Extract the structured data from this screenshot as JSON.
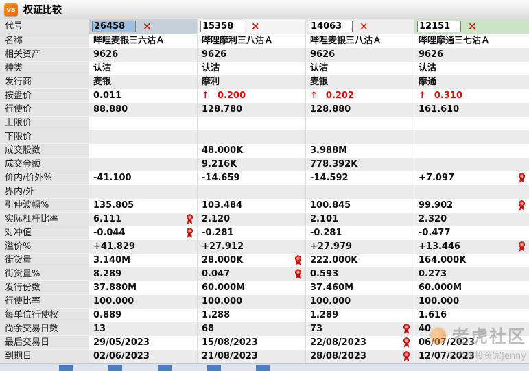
{
  "titlebar": {
    "logo_text": "vs",
    "title": "权证比较"
  },
  "table": {
    "header_label": "代号",
    "close_glyph": "×",
    "up_glyph": "↑",
    "award_icon": "award-ribbon",
    "row_labels": [
      "名称",
      "相关资产",
      "种类",
      "发行商",
      "按盘价",
      "行使价",
      "上限价",
      "下限价",
      "成交股数",
      "成交金额",
      "价内/价外%",
      "界内/外",
      "引伸波幅%",
      "实际杠杆比率",
      "对冲值",
      "溢价%",
      "街货量",
      "街货量%",
      "发行份数",
      "行使比率",
      "每单位行使权",
      "尚余交易日数",
      "最后交易日",
      "到期日"
    ],
    "accent_colors": {
      "value_red": "#e00000",
      "close_red": "#dd1111"
    },
    "columns": [
      {
        "code": "26458",
        "code_selected": true,
        "header_bg": "#c4d0da",
        "cells": [
          {
            "text": "哔哩麦银三六沽Ａ"
          },
          {
            "text": "9626"
          },
          {
            "text": "认沽"
          },
          {
            "text": "麦银"
          },
          {
            "text": "0.011"
          },
          {
            "text": "88.880"
          },
          {},
          {},
          {},
          {},
          {
            "text": "-41.100"
          },
          {},
          {
            "text": "135.805"
          },
          {
            "text": "6.111",
            "medal": true
          },
          {
            "text": "-0.044",
            "medal": true
          },
          {
            "text": "+41.829"
          },
          {
            "text": "3.140M"
          },
          {
            "text": "8.289"
          },
          {
            "text": "37.880M"
          },
          {
            "text": "100.000"
          },
          {
            "text": "0.889"
          },
          {
            "text": "13"
          },
          {
            "text": "29/05/2023"
          },
          {
            "text": "02/06/2023"
          }
        ]
      },
      {
        "code": "15358",
        "code_selected": false,
        "header_bg": "#f4f4f4",
        "cells": [
          {
            "text": "哔哩摩利三八沽Ａ"
          },
          {
            "text": "9626"
          },
          {
            "text": "认沽"
          },
          {
            "text": "摩利"
          },
          {
            "text": "0.200",
            "red": true,
            "arrow": true
          },
          {
            "text": "128.780"
          },
          {},
          {},
          {
            "text": "48.000K"
          },
          {
            "text": "9.216K"
          },
          {
            "text": "-14.659"
          },
          {},
          {
            "text": "103.484"
          },
          {
            "text": "2.120"
          },
          {
            "text": "-0.281"
          },
          {
            "text": "+27.912"
          },
          {
            "text": "28.000K",
            "medal": true
          },
          {
            "text": "0.047",
            "medal": true
          },
          {
            "text": "60.000M"
          },
          {
            "text": "100.000"
          },
          {
            "text": "1.288"
          },
          {
            "text": "68"
          },
          {
            "text": "15/08/2023"
          },
          {
            "text": "21/08/2023"
          }
        ]
      },
      {
        "code": "14063",
        "code_selected": false,
        "header_bg": "#ededed",
        "cells": [
          {
            "text": "哔哩麦银三八沽Ａ"
          },
          {
            "text": "9626"
          },
          {
            "text": "认沽"
          },
          {
            "text": "麦银"
          },
          {
            "text": "0.202",
            "red": true,
            "arrow": true
          },
          {
            "text": "128.880"
          },
          {},
          {},
          {
            "text": "3.988M"
          },
          {
            "text": "778.392K"
          },
          {
            "text": "-14.592"
          },
          {},
          {
            "text": "100.845"
          },
          {
            "text": "2.101"
          },
          {
            "text": "-0.281"
          },
          {
            "text": "+27.979"
          },
          {
            "text": "222.000K"
          },
          {
            "text": "0.593"
          },
          {
            "text": "37.460M"
          },
          {
            "text": "100.000"
          },
          {
            "text": "1.289"
          },
          {
            "text": "73",
            "medal": true
          },
          {
            "text": "22/08/2023",
            "medal": true
          },
          {
            "text": "28/08/2023",
            "medal": true
          }
        ]
      },
      {
        "code": "12151",
        "code_selected": false,
        "header_bg": "#cde3c6",
        "cells": [
          {
            "text": "哔哩摩通三七沽Ａ"
          },
          {
            "text": "9626"
          },
          {
            "text": "认沽"
          },
          {
            "text": "摩通"
          },
          {
            "text": "0.310",
            "red": true,
            "arrow": true
          },
          {
            "text": "161.610"
          },
          {},
          {},
          {},
          {},
          {
            "text": "+7.097",
            "medal": true
          },
          {},
          {
            "text": "99.902",
            "medal": true
          },
          {
            "text": "2.320"
          },
          {
            "text": "-0.477"
          },
          {
            "text": "+13.446",
            "medal": true
          },
          {
            "text": "164.000K"
          },
          {
            "text": "0.273"
          },
          {
            "text": "60.000M"
          },
          {
            "text": "100.000"
          },
          {
            "text": "1.616"
          },
          {
            "text": "40"
          },
          {
            "text": "06/07/2023"
          },
          {
            "text": "12/07/2023"
          }
        ]
      }
    ]
  },
  "bottom_strip": {
    "chips": [
      86,
      158,
      230,
      302,
      373
    ]
  },
  "watermark": {
    "brand": "老虎社区",
    "user": "老虎投资家Jenny"
  }
}
